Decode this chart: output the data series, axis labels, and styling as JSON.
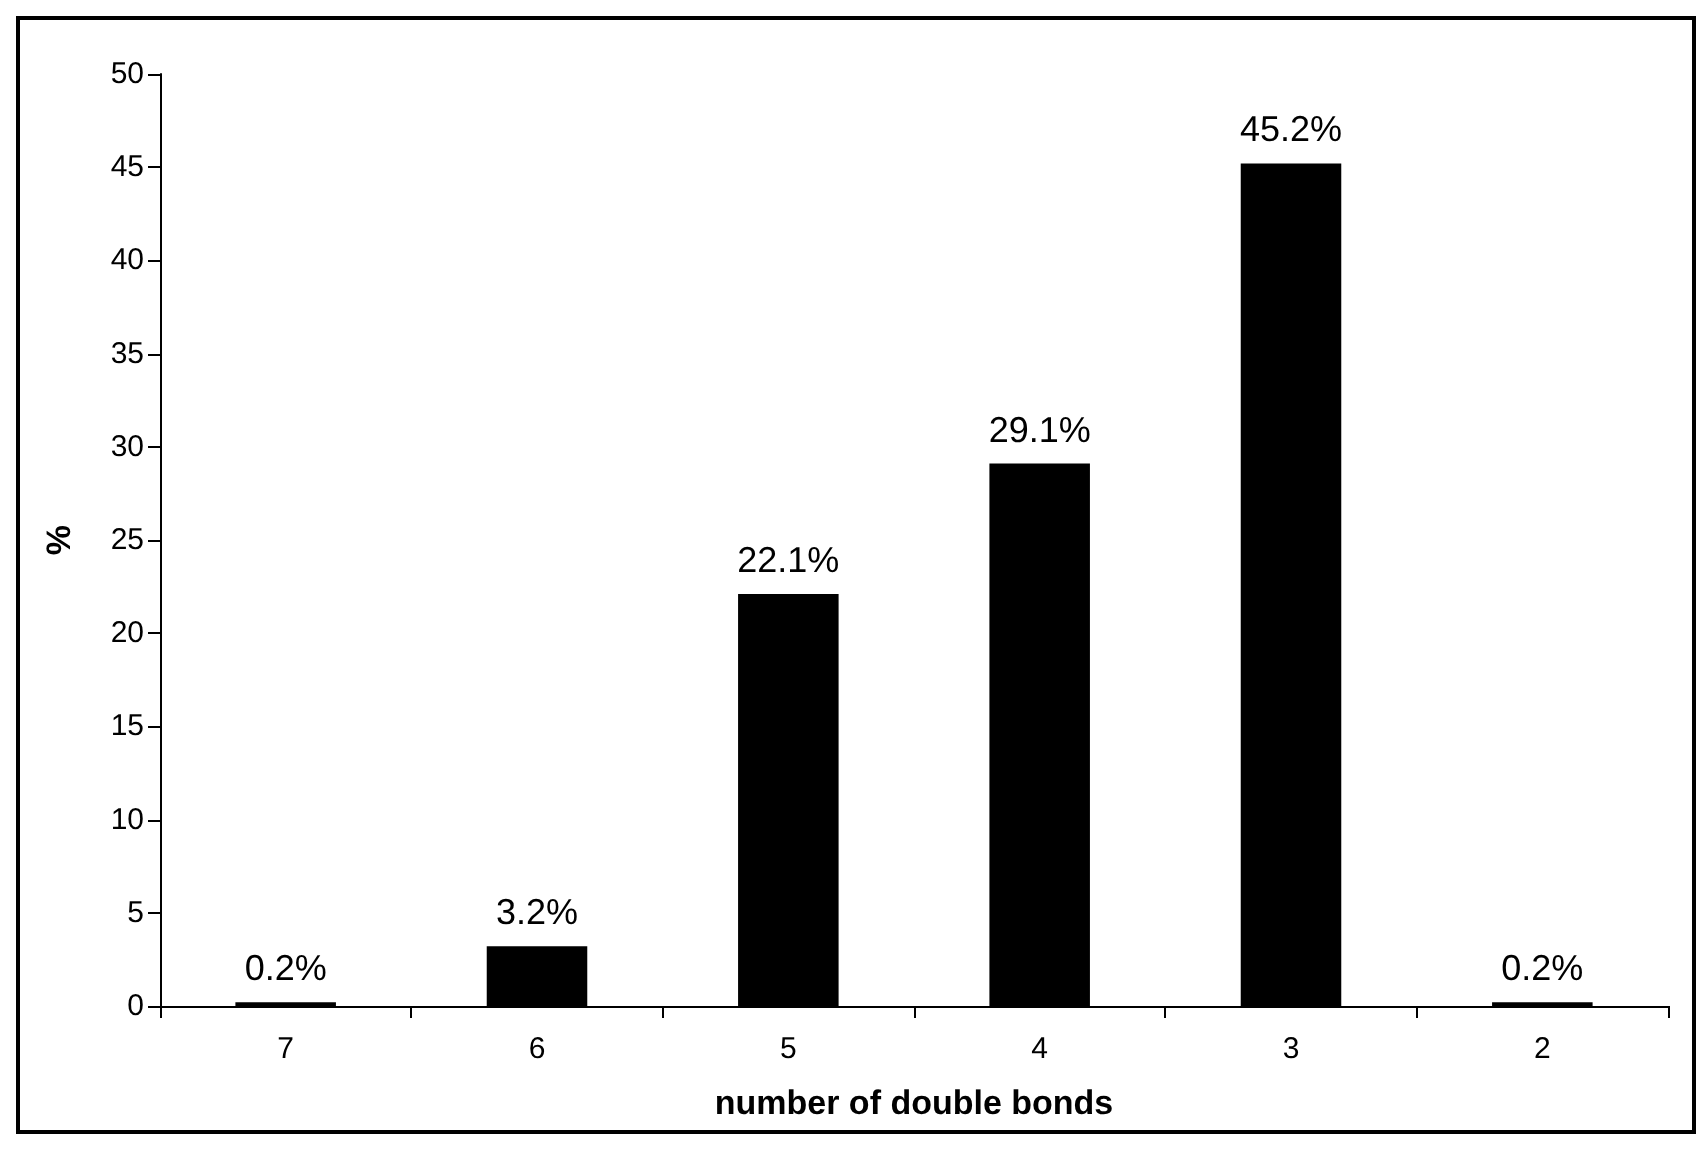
{
  "chart_data": {
    "type": "bar",
    "xlabel": "number of double bonds",
    "ylabel": "%",
    "categories": [
      "7",
      "6",
      "5",
      "4",
      "3",
      "2"
    ],
    "values": [
      0.2,
      3.2,
      22.1,
      29.1,
      45.2,
      0.2
    ],
    "value_labels": [
      "0.2%",
      "3.2%",
      "22.1%",
      "29.1%",
      "45.2%",
      "0.2%"
    ],
    "color": "#000000",
    "ylim": [
      0,
      50
    ],
    "yticks": [
      0,
      5,
      10,
      15,
      20,
      25,
      30,
      35,
      40,
      45,
      50
    ],
    "grid": false
  }
}
